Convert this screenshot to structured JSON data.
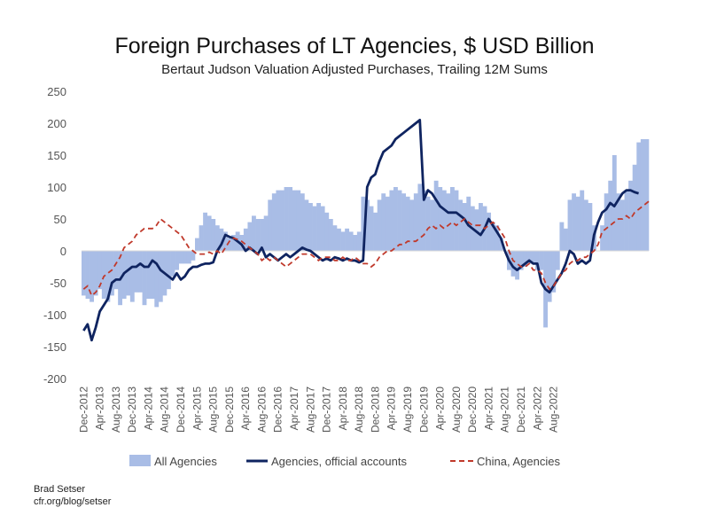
{
  "chart_data": {
    "type": "bar+line",
    "title": "Foreign Purchases of LT Agencies, $ USD Billion",
    "subtitle": "Bertaut Judson Valuation Adjusted Purchases, Trailing 12M Sums",
    "ylim": [
      -200,
      250
    ],
    "yticks": [
      250,
      200,
      150,
      100,
      50,
      0,
      -50,
      -100,
      -150,
      -200
    ],
    "x_start": "Dec-2012",
    "x_labels": [
      "Dec-2012",
      "Apr-2013",
      "Aug-2013",
      "Dec-2013",
      "Apr-2014",
      "Aug-2014",
      "Dec-2014",
      "Apr-2015",
      "Aug-2015",
      "Dec-2015",
      "Apr-2016",
      "Aug-2016",
      "Dec-2016",
      "Apr-2017",
      "Aug-2017",
      "Dec-2017",
      "Apr-2018",
      "Aug-2018",
      "Dec-2018",
      "Apr-2019",
      "Aug-2019",
      "Dec-2019",
      "Apr-2020",
      "Aug-2020",
      "Dec-2020",
      "Apr-2021",
      "Aug-2021",
      "Dec-2021",
      "Apr-2022",
      "Aug-2022"
    ],
    "legend_position": "bottom",
    "colors": {
      "all": "#a9bde6",
      "official": "#0f2460",
      "china": "#c0392b"
    },
    "series": [
      {
        "name": "All Agencies",
        "style": "bar",
        "values": [
          -70,
          -75,
          -80,
          -70,
          -60,
          -75,
          -80,
          -70,
          -60,
          -85,
          -75,
          -70,
          -80,
          -65,
          -65,
          -85,
          -75,
          -75,
          -88,
          -80,
          -70,
          -60,
          -40,
          -30,
          -20,
          -20,
          -20,
          -15,
          20,
          40,
          60,
          55,
          50,
          40,
          35,
          30,
          20,
          25,
          30,
          25,
          35,
          45,
          55,
          50,
          50,
          55,
          80,
          90,
          95,
          95,
          100,
          100,
          95,
          95,
          90,
          80,
          75,
          70,
          75,
          70,
          60,
          50,
          40,
          35,
          30,
          35,
          30,
          25,
          30,
          85,
          80,
          70,
          60,
          80,
          90,
          85,
          95,
          100,
          95,
          90,
          85,
          80,
          90,
          105,
          95,
          85,
          80,
          110,
          100,
          95,
          90,
          100,
          95,
          80,
          75,
          85,
          70,
          65,
          75,
          70,
          60,
          45,
          40,
          20,
          0,
          -30,
          -40,
          -45,
          -30,
          -25,
          -20,
          -20,
          -30,
          -30,
          -120,
          -80,
          -65,
          -30,
          45,
          35,
          80,
          90,
          85,
          95,
          80,
          75,
          40,
          0,
          40,
          90,
          110,
          150,
          90,
          80,
          95,
          110,
          135,
          170,
          175,
          175
        ]
      },
      {
        "name": "Agencies, official accounts",
        "style": "line",
        "values": [
          -125,
          -115,
          -140,
          -120,
          -95,
          -85,
          -75,
          -50,
          -45,
          -45,
          -35,
          -30,
          -25,
          -25,
          -20,
          -25,
          -25,
          -15,
          -20,
          -30,
          -35,
          -40,
          -45,
          -35,
          -45,
          -40,
          -30,
          -25,
          -25,
          -22,
          -20,
          -20,
          -18,
          0,
          10,
          25,
          22,
          20,
          15,
          10,
          0,
          5,
          0,
          -5,
          5,
          -10,
          -5,
          -10,
          -15,
          -10,
          -5,
          -10,
          -5,
          0,
          5,
          2,
          0,
          -5,
          -10,
          -15,
          -12,
          -15,
          -10,
          -12,
          -15,
          -12,
          -15,
          -15,
          -18,
          -15,
          100,
          115,
          120,
          140,
          155,
          160,
          165,
          175,
          180,
          185,
          190,
          195,
          200,
          205,
          80,
          95,
          90,
          80,
          70,
          65,
          60,
          60,
          60,
          55,
          50,
          40,
          35,
          30,
          25,
          35,
          50,
          40,
          30,
          20,
          0,
          -15,
          -25,
          -30,
          -25,
          -20,
          -15,
          -20,
          -20,
          -50,
          -60,
          -65,
          -55,
          -45,
          -35,
          -20,
          0,
          -5,
          -20,
          -15,
          -20,
          -15,
          25,
          45,
          60,
          65,
          75,
          70,
          80,
          90,
          95,
          95,
          92,
          90
        ]
      },
      {
        "name": "China, Agencies",
        "style": "dashed-line",
        "values": [
          -60,
          -55,
          -70,
          -65,
          -55,
          -40,
          -35,
          -30,
          -20,
          -10,
          5,
          10,
          15,
          25,
          30,
          35,
          35,
          35,
          40,
          50,
          45,
          40,
          35,
          30,
          25,
          15,
          5,
          0,
          -5,
          -5,
          -5,
          -2,
          -5,
          0,
          -5,
          5,
          15,
          20,
          18,
          15,
          10,
          5,
          0,
          -5,
          -15,
          -10,
          -15,
          -10,
          -15,
          -20,
          -25,
          -20,
          -15,
          -10,
          -5,
          -5,
          -5,
          -10,
          -15,
          -10,
          -10,
          -10,
          -15,
          -15,
          -10,
          -15,
          -15,
          -10,
          -15,
          -20,
          -20,
          -25,
          -20,
          -10,
          -5,
          0,
          0,
          5,
          10,
          10,
          15,
          15,
          15,
          20,
          25,
          35,
          40,
          35,
          40,
          35,
          40,
          45,
          40,
          45,
          50,
          45,
          40,
          40,
          40,
          35,
          40,
          45,
          40,
          30,
          20,
          0,
          -15,
          -20,
          -25,
          -25,
          -20,
          -30,
          -30,
          -35,
          -50,
          -60,
          -55,
          -45,
          -35,
          -30,
          -20,
          -15,
          -15,
          -10,
          -10,
          -5,
          0,
          10,
          30,
          35,
          40,
          45,
          50,
          50,
          55,
          50,
          60,
          65,
          70,
          75,
          80
        ]
      }
    ]
  },
  "credit": {
    "line1": "Brad Setser",
    "line2": "cfr.org/blog/setser"
  }
}
